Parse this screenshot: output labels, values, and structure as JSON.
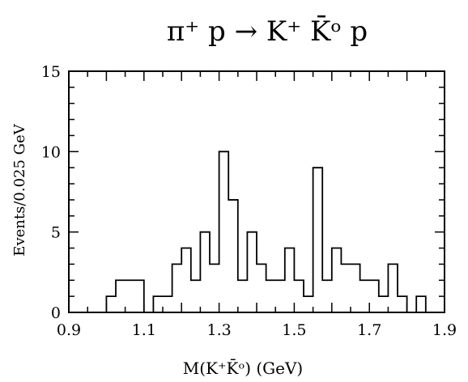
{
  "chart_data": {
    "type": "histogram",
    "title": "π⁺  p  →  K⁺  K̄ᵒ  p",
    "xlabel": "M(K⁺K̄ᵒ)     (GeV)",
    "ylabel": "Events/0.025  GeV",
    "xlim": [
      0.9,
      1.9
    ],
    "ylim": [
      0,
      15
    ],
    "bin_width": 0.025,
    "x_ticks": [
      "0.9",
      "1.1",
      "1.3",
      "1.5",
      "1.7",
      "1.9"
    ],
    "y_ticks": [
      "0",
      "5",
      "10",
      "15"
    ],
    "grid": false,
    "series": [
      {
        "bin_start": [
          1.0,
          1.025,
          1.05,
          1.075,
          1.1,
          1.125,
          1.15,
          1.175,
          1.2,
          1.225,
          1.25,
          1.275,
          1.3,
          1.325,
          1.35,
          1.375,
          1.4,
          1.425,
          1.45,
          1.475,
          1.5,
          1.525,
          1.55,
          1.575,
          1.6,
          1.625,
          1.65,
          1.675,
          1.7,
          1.725,
          1.75,
          1.775,
          1.8,
          1.825
        ],
        "values": [
          1,
          2,
          2,
          2,
          0,
          1,
          1,
          3,
          4,
          2,
          5,
          3,
          10,
          7,
          2,
          5,
          3,
          2,
          2,
          4,
          2,
          1,
          9,
          2,
          4,
          3,
          3,
          2,
          2,
          1,
          3,
          1,
          0,
          1
        ]
      }
    ]
  }
}
